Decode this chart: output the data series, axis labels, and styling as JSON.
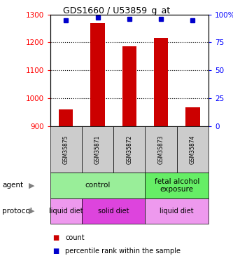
{
  "title": "GDS1660 / U53859_g_at",
  "samples": [
    "GSM35875",
    "GSM35871",
    "GSM35872",
    "GSM35873",
    "GSM35874"
  ],
  "counts": [
    960,
    1270,
    1185,
    1215,
    968
  ],
  "percentile_ranks": [
    95,
    97,
    96,
    96,
    95
  ],
  "ylim_left": [
    900,
    1300
  ],
  "ylim_right": [
    0,
    100
  ],
  "bar_color": "#cc0000",
  "dot_color": "#0000cc",
  "grid_yticks_left": [
    900,
    1000,
    1100,
    1200,
    1300
  ],
  "grid_yticks_right": [
    0,
    25,
    50,
    75,
    100
  ],
  "agent_groups": [
    {
      "label": "control",
      "start": 0,
      "end": 3,
      "color": "#99ee99"
    },
    {
      "label": "fetal alcohol\nexposure",
      "start": 3,
      "end": 5,
      "color": "#66ee66"
    }
  ],
  "protocol_groups": [
    {
      "label": "liquid diet",
      "start": 0,
      "end": 1,
      "color": "#ee99ee"
    },
    {
      "label": "solid diet",
      "start": 1,
      "end": 3,
      "color": "#dd44dd"
    },
    {
      "label": "liquid diet",
      "start": 3,
      "end": 5,
      "color": "#ee99ee"
    }
  ],
  "sample_box_color": "#cccccc",
  "legend_items": [
    {
      "color": "#cc0000",
      "label": "count"
    },
    {
      "color": "#0000cc",
      "label": "percentile rank within the sample"
    }
  ],
  "background_color": "#ffffff"
}
